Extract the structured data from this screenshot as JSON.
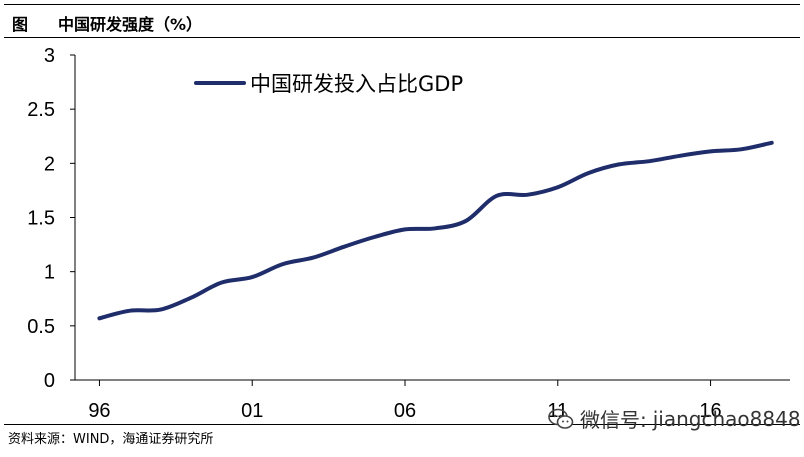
{
  "figure": {
    "label": "图",
    "title": "中国研发强度（%）"
  },
  "chart_data": {
    "type": "line",
    "title": "中国研发强度（%）",
    "xlabel": "",
    "ylabel": "",
    "ylim": [
      0,
      3
    ],
    "yticks": [
      "0",
      "0.5",
      "1",
      "1.5",
      "2",
      "2.5",
      "3"
    ],
    "xticks": [
      {
        "year": 1996,
        "label": "96"
      },
      {
        "year": 2001,
        "label": "01"
      },
      {
        "year": 2006,
        "label": "06"
      },
      {
        "year": 2011,
        "label": "11"
      },
      {
        "year": 2016,
        "label": "16"
      }
    ],
    "legend_position": "top-left",
    "grid": false,
    "series": [
      {
        "name": "中国研发投入占比GDP",
        "color": "#1f2d6b",
        "x": [
          1996,
          1997,
          1998,
          1999,
          2000,
          2001,
          2002,
          2003,
          2004,
          2005,
          2006,
          2007,
          2008,
          2009,
          2010,
          2011,
          2012,
          2013,
          2014,
          2015,
          2016,
          2017,
          2018
        ],
        "values": [
          0.57,
          0.64,
          0.65,
          0.76,
          0.9,
          0.95,
          1.07,
          1.13,
          1.23,
          1.32,
          1.39,
          1.4,
          1.47,
          1.7,
          1.71,
          1.78,
          1.91,
          1.99,
          2.02,
          2.07,
          2.11,
          2.13,
          2.19
        ]
      }
    ]
  },
  "source": "资料来源：WIND，海通证券研究所",
  "watermark": {
    "prefix": "微信号:",
    "id": "jiangchao8848"
  }
}
